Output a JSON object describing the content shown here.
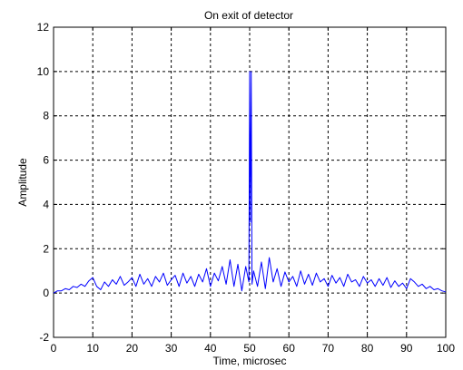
{
  "chart_data": {
    "type": "line",
    "title": "On exit of detector",
    "xlabel": "Time, microsec",
    "ylabel": "Amplitude",
    "xlim": [
      0,
      100
    ],
    "ylim": [
      -2,
      12
    ],
    "xticks": [
      0,
      10,
      20,
      30,
      40,
      50,
      60,
      70,
      80,
      90,
      100
    ],
    "yticks": [
      -2,
      0,
      2,
      4,
      6,
      8,
      10,
      12
    ],
    "grid": true,
    "line_color": "#0000ff",
    "series": [
      {
        "x": [
          0,
          1,
          2,
          3,
          4,
          5,
          6,
          7,
          8,
          9,
          10,
          11,
          12,
          13,
          14,
          15,
          16,
          17,
          18,
          19,
          20,
          21,
          22,
          23,
          24,
          25,
          26,
          27,
          28,
          29,
          30,
          31,
          32,
          33,
          34,
          35,
          36,
          37,
          38,
          39,
          40,
          41,
          42,
          43,
          44,
          45,
          46,
          47,
          48,
          49,
          49.8,
          50,
          50.2,
          50.4,
          50.6,
          51,
          52,
          53,
          54,
          55,
          56,
          57,
          58,
          59,
          60,
          61,
          62,
          63,
          64,
          65,
          66,
          67,
          68,
          69,
          70,
          71,
          72,
          73,
          74,
          75,
          76,
          77,
          78,
          79,
          80,
          81,
          82,
          83,
          84,
          85,
          86,
          87,
          88,
          89,
          90,
          91,
          92,
          93,
          94,
          95,
          96,
          97,
          98,
          99,
          100
        ],
        "values": [
          0,
          0.1,
          0.1,
          0.2,
          0.15,
          0.3,
          0.25,
          0.4,
          0.3,
          0.55,
          0.7,
          0.3,
          0.15,
          0.5,
          0.3,
          0.6,
          0.4,
          0.75,
          0.35,
          0.5,
          0.7,
          0.3,
          0.85,
          0.4,
          0.65,
          0.3,
          0.75,
          0.5,
          0.9,
          0.35,
          0.6,
          0.8,
          0.3,
          0.9,
          0.45,
          0.75,
          0.3,
          0.85,
          0.5,
          1.1,
          0.3,
          0.9,
          0.55,
          1.2,
          0.4,
          1.5,
          0.3,
          1.3,
          0.1,
          1.2,
          0.5,
          10,
          3.2,
          10,
          0.4,
          1.0,
          0.3,
          1.4,
          0.2,
          1.6,
          0.5,
          1.1,
          0.3,
          0.95,
          0.5,
          0.75,
          0.3,
          1.0,
          0.4,
          0.85,
          0.35,
          0.9,
          0.5,
          0.65,
          0.3,
          0.8,
          0.45,
          0.7,
          0.3,
          0.85,
          0.5,
          0.6,
          0.3,
          0.75,
          0.45,
          0.6,
          0.3,
          0.65,
          0.35,
          0.7,
          0.25,
          0.55,
          0.3,
          0.45,
          0.2,
          0.65,
          0.5,
          0.3,
          0.4,
          0.2,
          0.3,
          0.15,
          0.2,
          0.1,
          0.05
        ]
      }
    ]
  }
}
